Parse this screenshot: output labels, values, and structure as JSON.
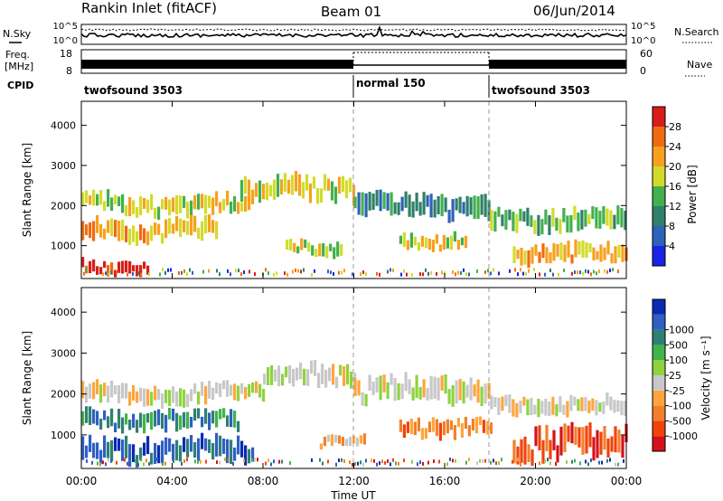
{
  "header": {
    "station": "Rankin Inlet (fitACF)",
    "beam": "Beam 01",
    "date": "06/Jun/2014"
  },
  "noise_panel": {
    "left_label": "N.Sky",
    "right_label": "N.Search",
    "left_ticks": [
      "10^5",
      "10^0"
    ],
    "right_ticks": [
      "10^5",
      "10^0"
    ]
  },
  "freq_panel": {
    "left_label_line1": "Freq.",
    "left_label_line2": "[MHz]",
    "left_ticks": [
      "18",
      "8"
    ],
    "right_ticks": [
      "60",
      "0"
    ],
    "right_label": "Nave"
  },
  "cpid_panel": {
    "label": "CPID",
    "segments": [
      {
        "name": "twofsound 3503",
        "start_h": 0,
        "end_h": 12
      },
      {
        "name": "normal 150",
        "start_h": 12,
        "end_h": 18
      },
      {
        "name": "twofsound 3503",
        "start_h": 18,
        "end_h": 24
      }
    ]
  },
  "x_axis": {
    "label": "Time UT",
    "ticks": [
      "00:00",
      "04:00",
      "08:00",
      "12:00",
      "16:00",
      "20:00",
      "00:00"
    ],
    "range_h": [
      0,
      24
    ]
  },
  "colors": {
    "velocity_colors": [
      "#d4111a",
      "#f1420a",
      "#f2802a",
      "#ffa53b",
      "#c8c8c8",
      "#8dd33f",
      "#3fb44a",
      "#2f7f74",
      "#2e5fc3",
      "#0a2ab0"
    ]
  },
  "chart_data": [
    {
      "type": "heatmap",
      "title": "Power",
      "ylabel": "Slant Range [km]",
      "ylim": [
        180,
        4600
      ],
      "yticks": [
        "1000",
        "2000",
        "3000",
        "4000"
      ],
      "ytick_values": [
        1000,
        2000,
        3000,
        4000
      ],
      "colorbar": {
        "label": "Power [dB]",
        "ticks": [
          "4",
          "8",
          "12",
          "16",
          "20",
          "24",
          "28"
        ],
        "colors": [
          "#1a24e6",
          "#2d62b8",
          "#2f8069",
          "#42b04c",
          "#d2db2a",
          "#f7a11e",
          "#ef6a12",
          "#d81d18"
        ]
      },
      "bands": [
        {
          "start_h": 0.0,
          "end_h": 7.5,
          "range_km": [
            1700,
            2350
          ],
          "level": 4
        },
        {
          "start_h": 0.0,
          "end_h": 6.0,
          "range_km": [
            1050,
            1750
          ],
          "level": 5
        },
        {
          "start_h": 0.0,
          "end_h": 3.0,
          "range_km": [
            250,
            700
          ],
          "level": 7
        },
        {
          "start_h": 7.0,
          "end_h": 12.0,
          "range_km": [
            2000,
            2800
          ],
          "level": 4
        },
        {
          "start_h": 9.0,
          "end_h": 11.5,
          "range_km": [
            700,
            1200
          ],
          "level": 4
        },
        {
          "start_h": 12.0,
          "end_h": 18.0,
          "range_km": [
            1600,
            2400
          ],
          "level": 2
        },
        {
          "start_h": 14.0,
          "end_h": 17.0,
          "range_km": [
            900,
            1400
          ],
          "level": 4
        },
        {
          "start_h": 18.0,
          "end_h": 24.0,
          "range_km": [
            1300,
            2000
          ],
          "level": 3
        },
        {
          "start_h": 19.0,
          "end_h": 24.0,
          "range_km": [
            500,
            1100
          ],
          "level": 5
        }
      ]
    },
    {
      "type": "heatmap",
      "title": "Velocity",
      "ylabel": "Slant Range [km]",
      "ylim": [
        180,
        4600
      ],
      "yticks": [
        "1000",
        "2000",
        "3000",
        "4000"
      ],
      "ytick_values": [
        1000,
        2000,
        3000,
        4000
      ],
      "colorbar": {
        "label": "Velocity [m s⁻¹]",
        "ticks": [
          "-1000",
          "-500",
          "-100",
          "-25",
          "25",
          "100",
          "500",
          "1000"
        ]
      },
      "bands": [
        {
          "start_h": 0.0,
          "end_h": 8.0,
          "range_km": [
            1700,
            2300
          ],
          "level": 4
        },
        {
          "start_h": 0.0,
          "end_h": 7.0,
          "range_km": [
            1050,
            1700
          ],
          "level": 7
        },
        {
          "start_h": 0.0,
          "end_h": 7.5,
          "range_km": [
            250,
            1050
          ],
          "level": 8
        },
        {
          "start_h": 8.0,
          "end_h": 12.0,
          "range_km": [
            2100,
            2800
          ],
          "level": 4
        },
        {
          "start_h": 12.0,
          "end_h": 18.0,
          "range_km": [
            1700,
            2500
          ],
          "level": 4
        },
        {
          "start_h": 10.5,
          "end_h": 12.5,
          "range_km": [
            700,
            1100
          ],
          "level": 3
        },
        {
          "start_h": 14.0,
          "end_h": 18.0,
          "range_km": [
            900,
            1500
          ],
          "level": 2
        },
        {
          "start_h": 18.0,
          "end_h": 24.0,
          "range_km": [
            1400,
            2000
          ],
          "level": 4
        },
        {
          "start_h": 19.0,
          "end_h": 24.0,
          "range_km": [
            300,
            1300
          ],
          "level": 1
        }
      ]
    }
  ]
}
